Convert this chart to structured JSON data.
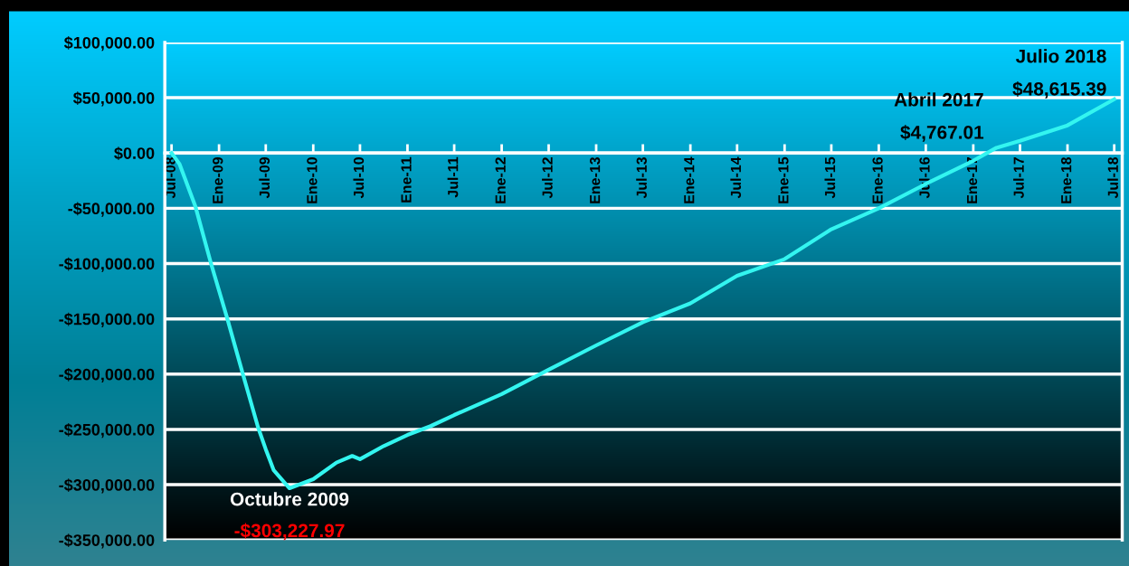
{
  "chart_data": {
    "type": "line",
    "x": [
      "2008-07",
      "2008-08",
      "2008-10",
      "2008-12",
      "2009-02",
      "2009-04",
      "2009-06",
      "2009-07",
      "2009-08",
      "2009-10",
      "2010-01",
      "2010-04",
      "2010-06",
      "2010-07",
      "2010-10",
      "2011-01",
      "2011-04",
      "2011-07",
      "2012-01",
      "2012-07",
      "2013-01",
      "2013-07",
      "2014-01",
      "2014-07",
      "2015-01",
      "2015-07",
      "2016-01",
      "2016-07",
      "2017-01",
      "2017-04",
      "2017-07",
      "2018-01",
      "2018-07"
    ],
    "series": [
      {
        "color": "#33f5f0",
        "values": [
          0,
          -10000,
          -48000,
          -100000,
          -149000,
          -198000,
          -248000,
          -268000,
          -287000,
          -303227.97,
          -295000,
          -280000,
          -274000,
          -277000,
          -265000,
          -255000,
          -247000,
          -237000,
          -218000,
          -196000,
          -174000,
          -153000,
          -136000,
          -111000,
          -96000,
          -69000,
          -50000,
          -28000,
          -7000,
          4767.01,
          11000,
          25000,
          48615.39
        ]
      }
    ],
    "xlim": [
      "2008-06-05",
      "2018-08-01"
    ],
    "xticks": [
      {
        "value": "2008-07",
        "label": "Jul-08"
      },
      {
        "value": "2009-01",
        "label": "Ene-09"
      },
      {
        "value": "2009-07",
        "label": "Jul-09"
      },
      {
        "value": "2010-01",
        "label": "Ene-10"
      },
      {
        "value": "2010-07",
        "label": "Jul-10"
      },
      {
        "value": "2011-01",
        "label": "Ene-11"
      },
      {
        "value": "2011-07",
        "label": "Jul-11"
      },
      {
        "value": "2012-01",
        "label": "Ene-12"
      },
      {
        "value": "2012-07",
        "label": "Jul-12"
      },
      {
        "value": "2013-01",
        "label": "Ene-13"
      },
      {
        "value": "2013-07",
        "label": "Jul-13"
      },
      {
        "value": "2014-01",
        "label": "Ene-14"
      },
      {
        "value": "2014-07",
        "label": "Jul-14"
      },
      {
        "value": "2015-01",
        "label": "Ene-15"
      },
      {
        "value": "2015-07",
        "label": "Jul-15"
      },
      {
        "value": "2016-01",
        "label": "Ene-16"
      },
      {
        "value": "2016-07",
        "label": "Jul-16"
      },
      {
        "value": "2017-01",
        "label": "Ene-17"
      },
      {
        "value": "2017-07",
        "label": "Jul-17"
      },
      {
        "value": "2018-01",
        "label": "Ene-18"
      },
      {
        "value": "2018-07",
        "label": "Jul-18"
      }
    ],
    "ylim": [
      -350000,
      100000
    ],
    "yticks": [
      {
        "value": -350000,
        "label": "-$350,000.00"
      },
      {
        "value": -300000,
        "label": "-$300,000.00"
      },
      {
        "value": -250000,
        "label": "-$250,000.00"
      },
      {
        "value": -200000,
        "label": "-$200,000.00"
      },
      {
        "value": -150000,
        "label": "-$150,000.00"
      },
      {
        "value": -100000,
        "label": "-$100,000.00"
      },
      {
        "value": -50000,
        "label": "-$50,000.00"
      },
      {
        "value": 0,
        "label": "$0.00"
      },
      {
        "value": 50000,
        "label": "$50,000.00"
      },
      {
        "value": 100000,
        "label": "$100,000.00"
      }
    ],
    "grid": "y",
    "line_style": "solid",
    "annotations": [
      {
        "text": "Octubre 2009",
        "x": "2009-10",
        "y": -303227.97
      },
      {
        "text": "-$303,227.97",
        "x": "2009-10",
        "y": -303227.97
      },
      {
        "text": "Abril 2017",
        "x": "2017-04",
        "y": 4767.01
      },
      {
        "text": "$4,767.01",
        "x": "2017-04",
        "y": 4767.01
      },
      {
        "text": "Julio 2018",
        "x": "2018-07",
        "y": 48615.39
      },
      {
        "text": "$48,615.39",
        "x": "2018-07",
        "y": 48615.39
      }
    ]
  }
}
